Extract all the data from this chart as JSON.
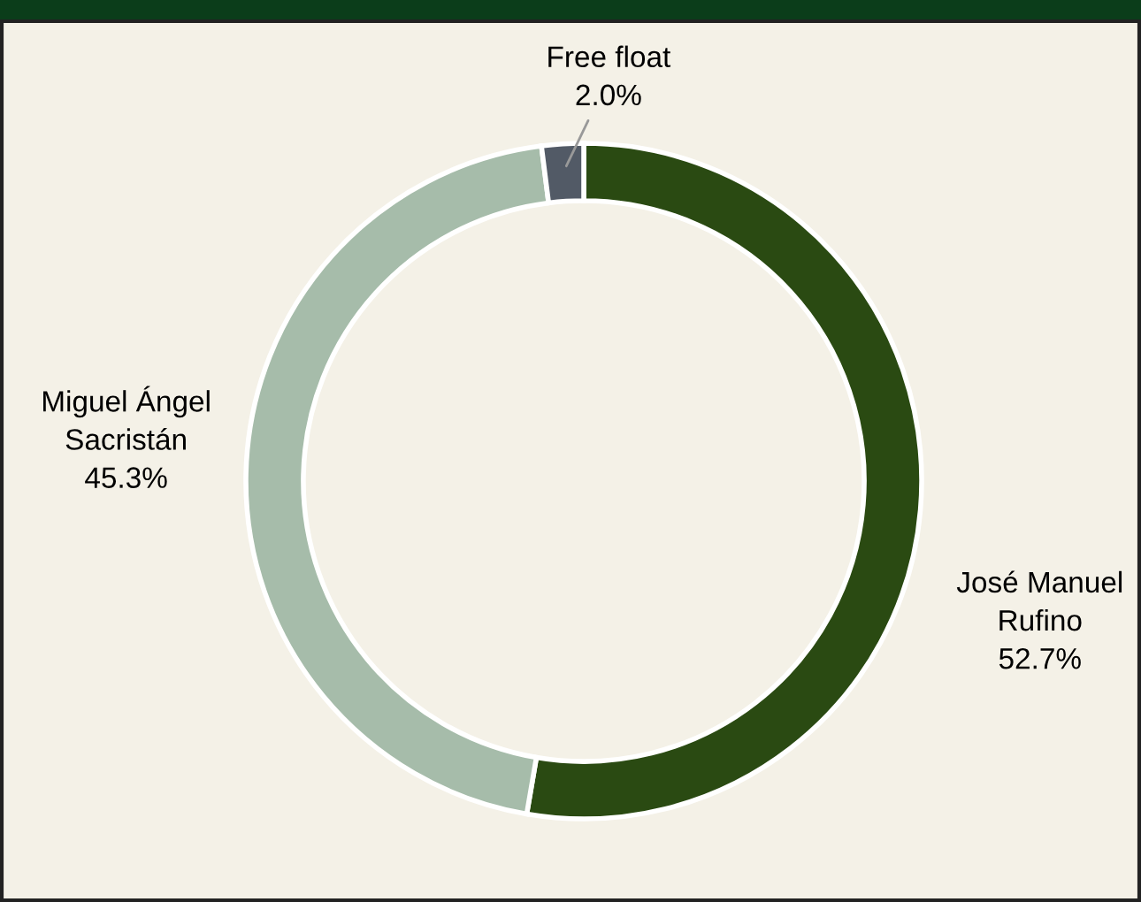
{
  "chart_data": {
    "type": "donut",
    "categories": [
      "José Manuel\nRufino",
      "Miguel Ángel\nSacristán",
      "Free float"
    ],
    "values": [
      52.7,
      45.3,
      2.0
    ],
    "value_labels": [
      "52.7%",
      "45.3%",
      "2.0%"
    ],
    "colors": [
      "#2a4a12",
      "#a6bcaa",
      "#525a66"
    ]
  }
}
